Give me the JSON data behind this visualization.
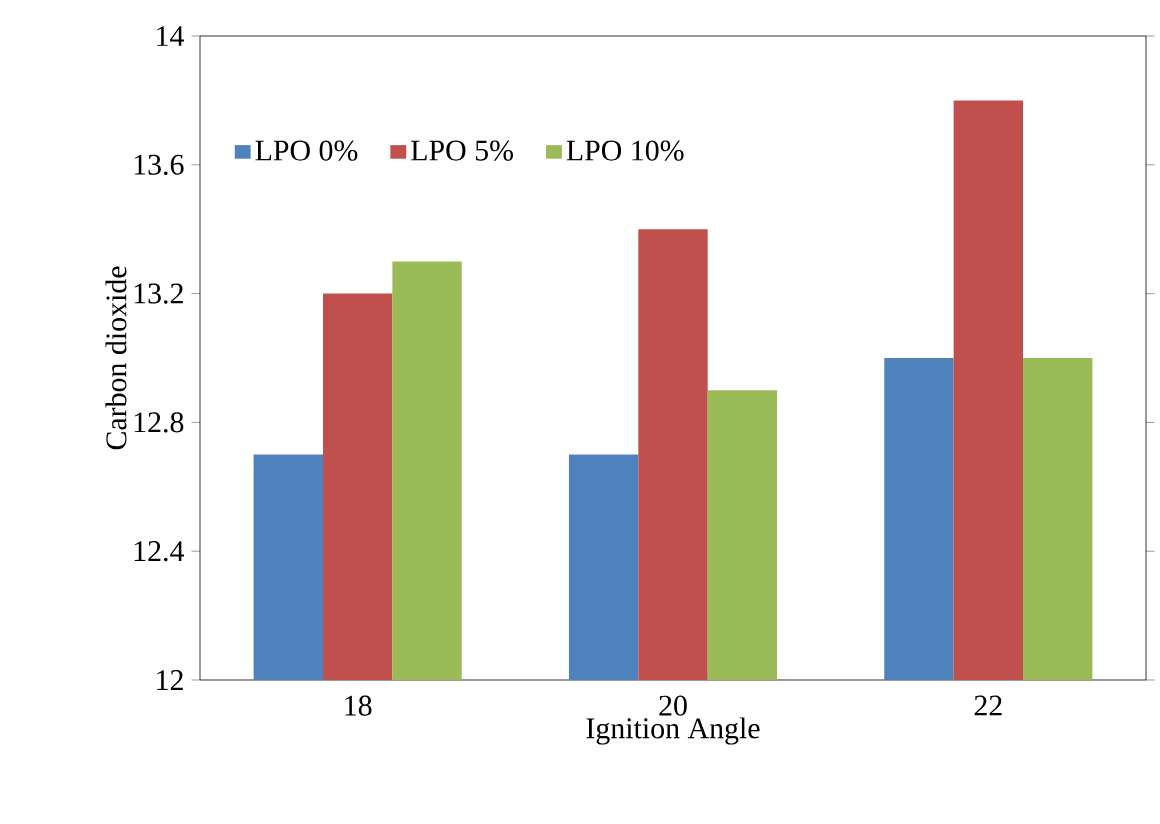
{
  "chart_data": {
    "type": "bar",
    "categories": [
      "18",
      "20",
      "22"
    ],
    "xlabel": "Ignition Angle",
    "ylabel": "Carbon dioxide",
    "series": [
      {
        "name": "LPO 0%",
        "color": "#4f81bd",
        "values": [
          12.7,
          12.7,
          13.0
        ]
      },
      {
        "name": "LPO 5%",
        "color": "#c0504d",
        "values": [
          13.2,
          13.4,
          13.8
        ]
      },
      {
        "name": "LPO 10%",
        "color": "#9bbb59",
        "values": [
          13.3,
          12.9,
          13.0
        ]
      }
    ],
    "ylim": [
      12,
      14
    ],
    "yticks": [
      12,
      12.4,
      12.8,
      13.2,
      13.6,
      14
    ],
    "grid": false,
    "legend": "top left"
  }
}
